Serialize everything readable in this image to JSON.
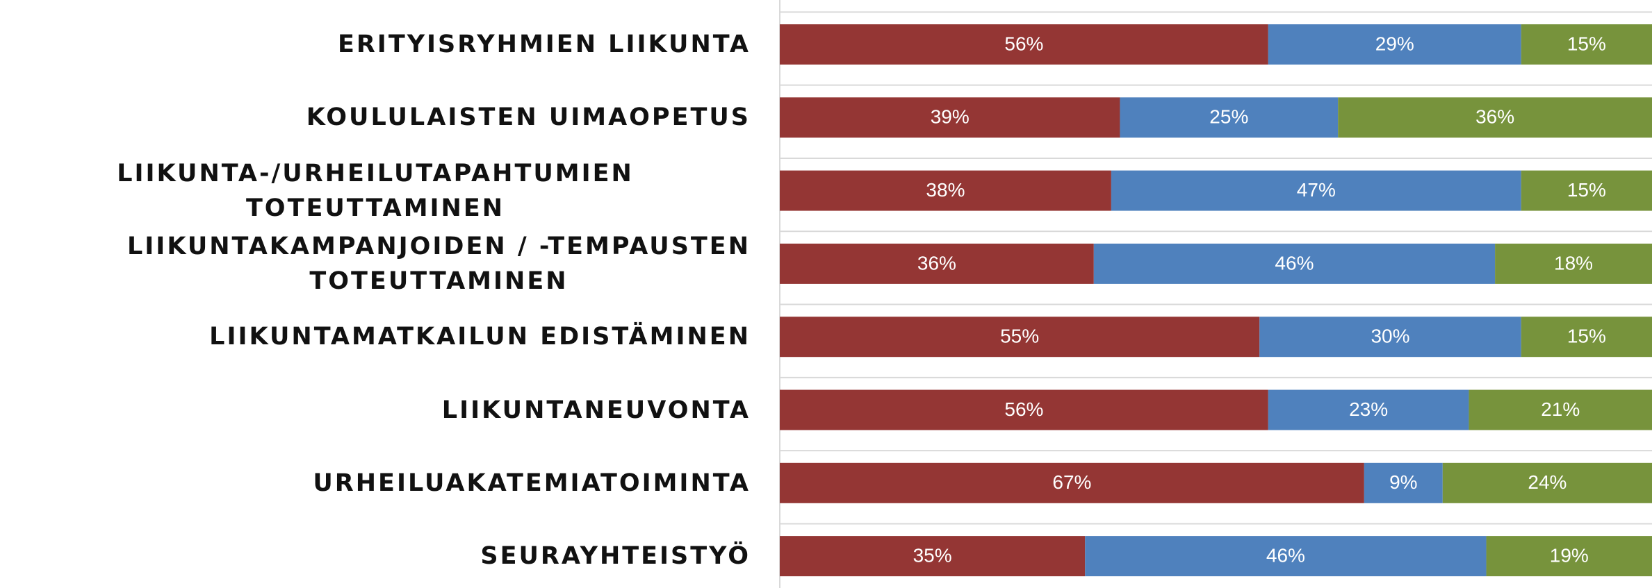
{
  "chart_data": {
    "type": "stacked_bar_horizontal",
    "categories": [
      "ERITYISRYHMIEN LIIKUNTA",
      "KOULULAISTEN UIMAOPETUS",
      "LIIKUNTA-/URHEILUTAPAHTUMIEN TOTEUTTAMINEN",
      "LIIKUNTAKAMPANJOIDEN / -TEMPAUSTEN\nTOTEUTTAMINEN",
      "LIIKUNTAMATKAILUN EDISTÄMINEN",
      "LIIKUNTANEUVONTA",
      "URHEILUAKATEMIATOIMINTA",
      "SEURAYHTEISTYÖ"
    ],
    "series": [
      {
        "color": "#943634",
        "values": [
          56,
          39,
          38,
          36,
          55,
          56,
          67,
          35
        ],
        "value_labels": [
          "56%",
          "39%",
          "38%",
          "36%",
          "55%",
          "56%",
          "67%",
          "35%"
        ]
      },
      {
        "color": "#4f81bd",
        "values": [
          29,
          25,
          47,
          46,
          30,
          23,
          9,
          46
        ],
        "value_labels": [
          "29%",
          "25%",
          "47%",
          "46%",
          "30%",
          "23%",
          "9%",
          "46%"
        ]
      },
      {
        "color": "#77933c",
        "values": [
          15,
          36,
          15,
          18,
          15,
          21,
          24,
          19
        ],
        "value_labels": [
          "15%",
          "36%",
          "15%",
          "18%",
          "15%",
          "21%",
          "24%",
          "19%"
        ]
      }
    ],
    "xlim": [
      0,
      100
    ]
  }
}
